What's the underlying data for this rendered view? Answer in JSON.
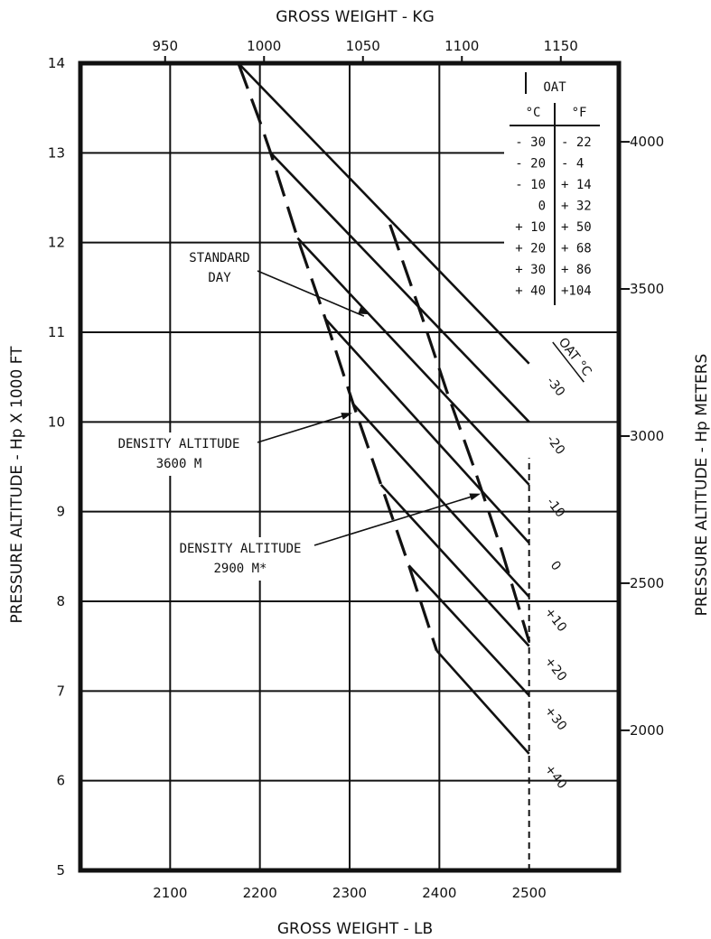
{
  "chart_data": {
    "type": "line",
    "title": "",
    "xlabel": "GROSS WEIGHT - LB",
    "ylabel": "PRESSURE ALTITUDE - Hp X 1000 FT",
    "x2label": "GROSS WEIGHT - KG",
    "y2label": "PRESSURE ALTITUDE - Hp METERS",
    "xlim": [
      2000,
      2500
    ],
    "ylim": [
      5,
      14
    ],
    "x_ticks": [
      "2100",
      "2200",
      "2300",
      "2400",
      "2500"
    ],
    "y_ticks": [
      "5",
      "6",
      "7",
      "8",
      "9",
      "10",
      "11",
      "12",
      "13",
      "14"
    ],
    "x2_ticks": [
      {
        "label": "950",
        "kg": 950
      },
      {
        "label": "1000",
        "kg": 1000
      },
      {
        "label": "1050",
        "kg": 1050
      },
      {
        "label": "1100",
        "kg": 1100
      },
      {
        "label": "1150",
        "kg": 1150
      }
    ],
    "y2_ticks": [
      {
        "label": "2000",
        "m": 2000
      },
      {
        "label": "2500",
        "m": 2500
      },
      {
        "label": "3000",
        "m": 3000
      },
      {
        "label": "3500",
        "m": 3500
      },
      {
        "label": "4000",
        "m": 4000
      }
    ],
    "oat_header": "OAT",
    "oat_curve_title": "OAT °C",
    "oat_table": {
      "col_c": "°C",
      "col_f": "°F",
      "rows": [
        {
          "c": "- 30",
          "f": "- 22"
        },
        {
          "c": "- 20",
          "f": "-  4"
        },
        {
          "c": "- 10",
          "f": "+ 14"
        },
        {
          "c": "0",
          "f": "+ 32"
        },
        {
          "c": "+ 10",
          "f": "+ 50"
        },
        {
          "c": "+ 20",
          "f": "+ 68"
        },
        {
          "c": "+ 30",
          "f": "+ 86"
        },
        {
          "c": "+ 40",
          "f": "+104"
        }
      ]
    },
    "series": [
      {
        "name": "-30",
        "points": [
          [
            2176,
            14.0
          ],
          [
            2500,
            10.65
          ]
        ]
      },
      {
        "name": "-20",
        "points": [
          [
            2212,
            13.0
          ],
          [
            2500,
            10.0
          ]
        ]
      },
      {
        "name": "-10",
        "points": [
          [
            2242,
            12.05
          ],
          [
            2500,
            9.3
          ]
        ]
      },
      {
        "name": "0",
        "points": [
          [
            2273,
            11.15
          ],
          [
            2500,
            8.65
          ]
        ]
      },
      {
        "name": "+10",
        "points": [
          [
            2304,
            10.2
          ],
          [
            2500,
            8.05
          ]
        ]
      },
      {
        "name": "+20",
        "points": [
          [
            2335,
            9.3
          ],
          [
            2500,
            7.5
          ]
        ]
      },
      {
        "name": "+30",
        "points": [
          [
            2366,
            8.4
          ],
          [
            2500,
            6.95
          ]
        ]
      },
      {
        "name": "+40",
        "points": [
          [
            2397,
            7.45
          ],
          [
            2500,
            6.3
          ]
        ]
      }
    ],
    "dashed_lines": [
      {
        "points": [
          [
            2176,
            14.0
          ],
          [
            2200,
            13.35
          ],
          [
            2212,
            13.0
          ],
          [
            2242,
            12.05
          ],
          [
            2273,
            11.15
          ],
          [
            2304,
            10.2
          ],
          [
            2335,
            9.3
          ],
          [
            2366,
            8.4
          ],
          [
            2397,
            7.45
          ]
        ]
      },
      {
        "points": [
          [
            2345,
            12.2
          ],
          [
            2378,
            11.25
          ],
          [
            2408,
            10.35
          ],
          [
            2440,
            9.45
          ],
          [
            2470,
            8.55
          ],
          [
            2500,
            7.55
          ]
        ]
      },
      {
        "points": [
          [
            2500,
            5.0
          ],
          [
            2500,
            9.6
          ]
        ]
      }
    ],
    "annotations": [
      {
        "lines": [
          "STANDARD",
          "DAY"
        ],
        "target": [
          2322,
          11.2
        ]
      },
      {
        "lines": [
          "DENSITY ALTITUDE",
          "3600 M"
        ],
        "target": [
          2303,
          10.1
        ]
      },
      {
        "lines": [
          "DENSITY ALTITUDE",
          "2900 M*"
        ],
        "target": [
          2446,
          9.2
        ]
      }
    ],
    "grid": true
  }
}
